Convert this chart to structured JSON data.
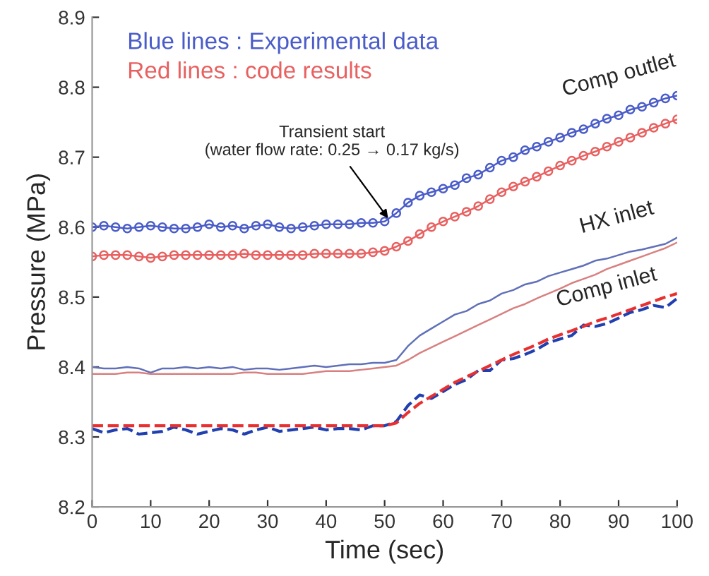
{
  "chart_data": {
    "type": "line",
    "xlabel": "Time (sec)",
    "ylabel": "Pressure (MPa)",
    "x": [
      0,
      2,
      4,
      6,
      8,
      10,
      12,
      14,
      16,
      18,
      20,
      22,
      24,
      26,
      28,
      30,
      32,
      34,
      36,
      38,
      40,
      42,
      44,
      46,
      48,
      50,
      52,
      54,
      56,
      58,
      60,
      62,
      64,
      66,
      68,
      70,
      72,
      74,
      76,
      78,
      80,
      82,
      84,
      86,
      88,
      90,
      92,
      94,
      96,
      98,
      100
    ],
    "xlim": [
      0,
      100
    ],
    "xticks": [
      0,
      10,
      20,
      30,
      40,
      50,
      60,
      70,
      80,
      90,
      100
    ],
    "ylim": [
      8.2,
      8.9
    ],
    "yticks": [
      8.2,
      8.3,
      8.4,
      8.5,
      8.6,
      8.7,
      8.8,
      8.9
    ],
    "grid": false,
    "legend": false,
    "series": [
      {
        "color": "#4a5cc8",
        "marker": "circle",
        "line_style": "solid",
        "values": [
          8.6,
          8.602,
          8.6,
          8.598,
          8.6,
          8.602,
          8.6,
          8.598,
          8.598,
          8.6,
          8.604,
          8.6,
          8.602,
          8.598,
          8.602,
          8.604,
          8.6,
          8.598,
          8.6,
          8.602,
          8.604,
          8.604,
          8.604,
          8.606,
          8.606,
          8.608,
          8.62,
          8.635,
          8.645,
          8.65,
          8.655,
          8.66,
          8.67,
          8.675,
          8.685,
          8.695,
          8.7,
          8.71,
          8.715,
          8.722,
          8.728,
          8.735,
          8.74,
          8.748,
          8.755,
          8.76,
          8.768,
          8.772,
          8.778,
          8.784,
          8.788
        ]
      },
      {
        "color": "#e86060",
        "marker": "circle",
        "line_style": "solid",
        "values": [
          8.558,
          8.56,
          8.56,
          8.56,
          8.558,
          8.556,
          8.558,
          8.56,
          8.56,
          8.56,
          8.56,
          8.56,
          8.56,
          8.562,
          8.56,
          8.56,
          8.56,
          8.56,
          8.56,
          8.562,
          8.562,
          8.562,
          8.562,
          8.562,
          8.564,
          8.566,
          8.572,
          8.58,
          8.59,
          8.6,
          8.608,
          8.615,
          8.622,
          8.63,
          8.64,
          8.65,
          8.658,
          8.665,
          8.672,
          8.68,
          8.688,
          8.695,
          8.702,
          8.708,
          8.715,
          8.722,
          8.728,
          8.735,
          8.742,
          8.748,
          8.754
        ]
      },
      {
        "color": "#6070b8",
        "marker": "none",
        "line_style": "solid",
        "values": [
          8.4,
          8.398,
          8.398,
          8.4,
          8.398,
          8.392,
          8.398,
          8.398,
          8.4,
          8.398,
          8.4,
          8.398,
          8.4,
          8.396,
          8.398,
          8.398,
          8.396,
          8.398,
          8.4,
          8.402,
          8.4,
          8.402,
          8.404,
          8.404,
          8.406,
          8.406,
          8.41,
          8.43,
          8.445,
          8.455,
          8.465,
          8.475,
          8.48,
          8.49,
          8.495,
          8.505,
          8.51,
          8.518,
          8.522,
          8.53,
          8.535,
          8.54,
          8.545,
          8.552,
          8.555,
          8.56,
          8.565,
          8.568,
          8.572,
          8.576,
          8.585
        ]
      },
      {
        "color": "#d88080",
        "marker": "none",
        "line_style": "solid",
        "values": [
          8.39,
          8.39,
          8.39,
          8.392,
          8.392,
          8.39,
          8.39,
          8.39,
          8.39,
          8.39,
          8.39,
          8.39,
          8.39,
          8.392,
          8.392,
          8.39,
          8.39,
          8.39,
          8.39,
          8.392,
          8.394,
          8.394,
          8.394,
          8.396,
          8.398,
          8.4,
          8.402,
          8.41,
          8.42,
          8.428,
          8.436,
          8.444,
          8.452,
          8.46,
          8.468,
          8.476,
          8.484,
          8.49,
          8.498,
          8.505,
          8.512,
          8.52,
          8.526,
          8.532,
          8.54,
          8.546,
          8.552,
          8.558,
          8.564,
          8.57,
          8.578
        ]
      },
      {
        "color": "#2040b0",
        "marker": "none",
        "line_style": "dashed",
        "values": [
          8.312,
          8.306,
          8.31,
          8.312,
          8.304,
          8.306,
          8.308,
          8.314,
          8.31,
          8.304,
          8.308,
          8.312,
          8.31,
          8.304,
          8.31,
          8.314,
          8.308,
          8.31,
          8.312,
          8.314,
          8.31,
          8.312,
          8.312,
          8.31,
          8.316,
          8.316,
          8.322,
          8.345,
          8.36,
          8.355,
          8.365,
          8.375,
          8.382,
          8.395,
          8.395,
          8.41,
          8.412,
          8.418,
          8.425,
          8.435,
          8.44,
          8.445,
          8.46,
          8.458,
          8.462,
          8.47,
          8.478,
          8.482,
          8.488,
          8.485,
          8.498
        ]
      },
      {
        "color": "#e83030",
        "marker": "none",
        "line_style": "dashed",
        "values": [
          8.316,
          8.316,
          8.316,
          8.316,
          8.316,
          8.316,
          8.316,
          8.316,
          8.316,
          8.316,
          8.316,
          8.316,
          8.316,
          8.316,
          8.316,
          8.316,
          8.316,
          8.316,
          8.316,
          8.316,
          8.316,
          8.316,
          8.316,
          8.316,
          8.316,
          8.316,
          8.32,
          8.335,
          8.348,
          8.358,
          8.368,
          8.378,
          8.386,
          8.394,
          8.402,
          8.41,
          8.418,
          8.425,
          8.432,
          8.44,
          8.446,
          8.452,
          8.458,
          8.465,
          8.47,
          8.476,
          8.482,
          8.488,
          8.494,
          8.5,
          8.505
        ]
      }
    ],
    "annotations": [
      "Blue lines : Experimental data",
      "Red lines : code results",
      {
        "text": "Transient start\n(water flow rate: 0.25 → 0.17 kg/s)",
        "x": 51,
        "y": 8.608
      },
      "Comp outlet",
      "HX inlet",
      "Comp inlet"
    ]
  }
}
